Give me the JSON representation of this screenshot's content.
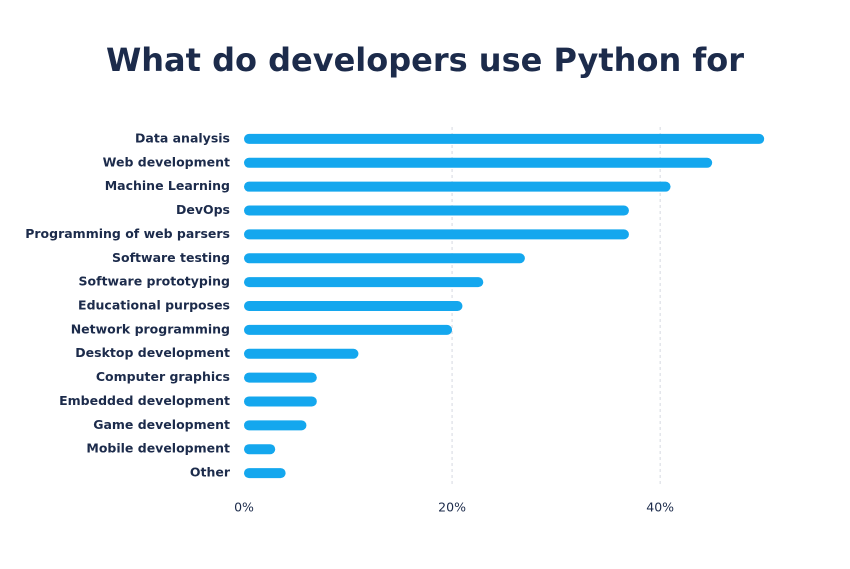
{
  "chart_data": {
    "type": "hbar",
    "title": "What do developers use Python for",
    "categories": [
      "Data analysis",
      "Web development",
      "Machine Learning",
      "DevOps",
      "Programming of web parsers",
      "Software testing",
      "Software prototyping",
      "Educational purposes",
      "Network programming",
      "Desktop development",
      "Computer graphics",
      "Embedded development",
      "Game development",
      "Mobile development",
      "Other"
    ],
    "values": [
      50,
      45,
      41,
      37,
      37,
      27,
      23,
      21,
      20,
      11,
      7,
      7,
      6,
      3,
      4
    ],
    "color": "#14a7ee",
    "xlim": [
      0,
      52
    ],
    "xticks": [
      {
        "value": 0,
        "label": "0%"
      },
      {
        "value": 20,
        "label": "20%"
      },
      {
        "value": 40,
        "label": "40%"
      }
    ],
    "grid": true
  }
}
